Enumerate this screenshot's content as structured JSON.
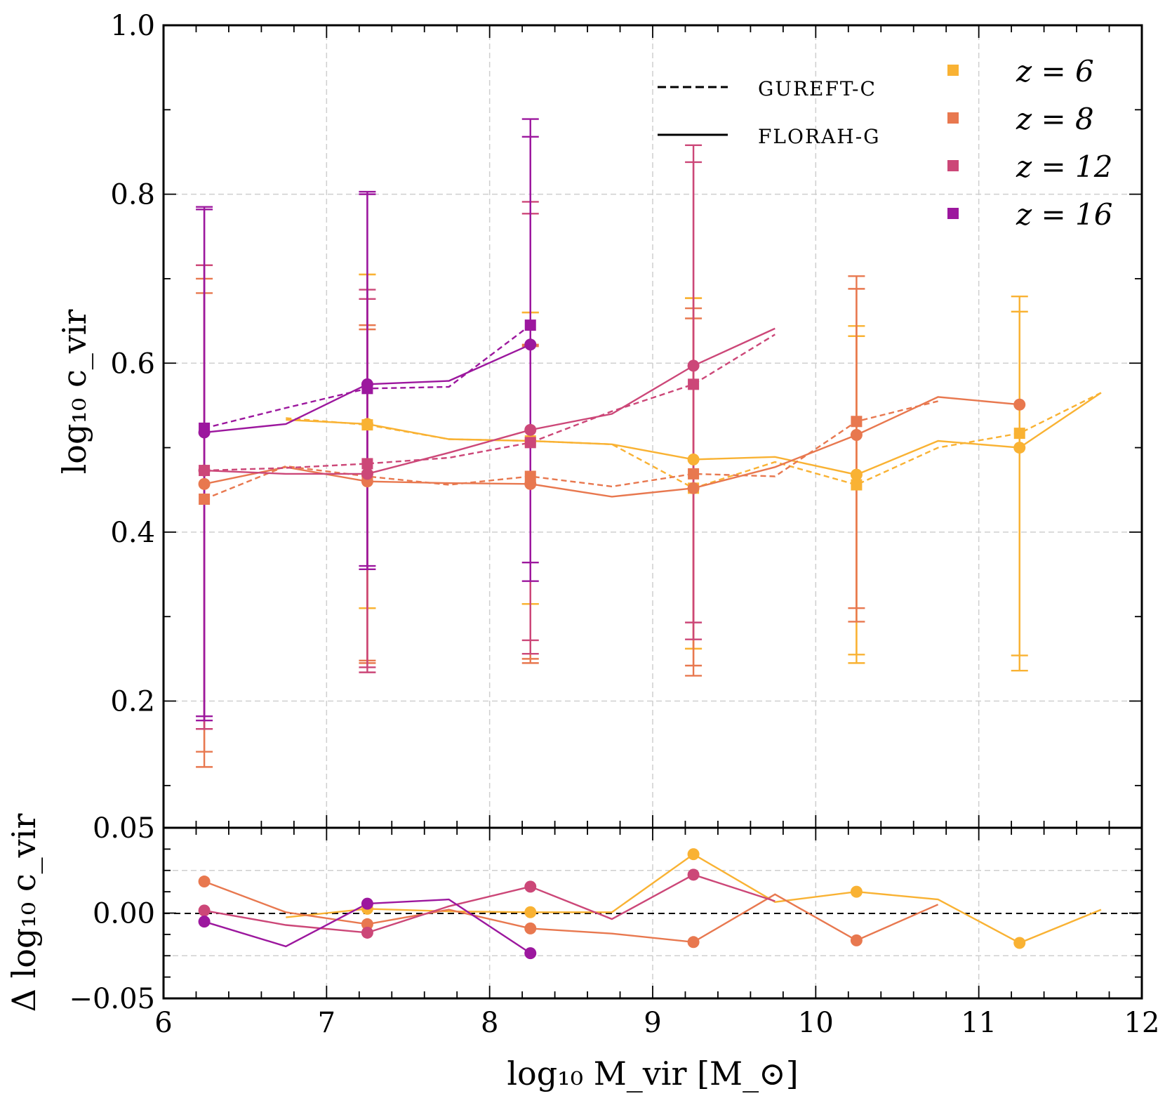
{
  "chart_data": [
    {
      "type": "line",
      "panel": "main",
      "ylabel": "log₁₀ c_vir",
      "xlim": [
        6,
        12
      ],
      "ylim": [
        0.05,
        1.0
      ],
      "yticks": [
        0.2,
        0.4,
        0.6,
        0.8,
        1.0
      ],
      "ytick_labels": [
        "0.2",
        "0.4",
        "0.6",
        "0.8",
        "1.0"
      ],
      "grid": true,
      "style_legend": [
        {
          "label": "GUREFT-C",
          "linestyle": "dashed"
        },
        {
          "label": "FLORAH-G",
          "linestyle": "solid"
        }
      ],
      "series": [
        {
          "name": "z = 6",
          "legend_label": "z = 6",
          "color": "#F9B233",
          "florah_line": {
            "x": [
              6.75,
              7.25,
              7.75,
              8.25,
              8.75,
              9.25,
              9.75,
              10.25,
              10.75,
              11.25,
              11.75
            ],
            "y": [
              0.533,
              0.528,
              0.51,
              0.508,
              0.504,
              0.486,
              0.489,
              0.468,
              0.508,
              0.5,
              0.565
            ]
          },
          "gureft_line": {
            "x": [
              6.75,
              7.25,
              7.75,
              8.25,
              8.75,
              9.25,
              9.75,
              10.25,
              10.75,
              11.25,
              11.75
            ],
            "y": [
              0.535,
              0.527,
              0.51,
              0.508,
              0.504,
              0.452,
              0.483,
              0.456,
              0.5,
              0.517,
              0.565
            ]
          },
          "florah_points": {
            "x": [
              7.25,
              8.25,
              9.25,
              10.25,
              11.25
            ],
            "y": [
              0.528,
              0.508,
              0.486,
              0.468,
              0.5
            ]
          },
          "gureft_points": {
            "x": [
              7.25,
              8.25,
              9.25,
              10.25,
              11.25
            ],
            "y": [
              0.527,
              0.508,
              0.452,
              0.456,
              0.517
            ]
          },
          "errorbars": {
            "florah": {
              "x": [
                7.25,
                8.25,
                9.25,
                10.25,
                11.25
              ],
              "low": [
                0.31,
                0.315,
                0.262,
                0.255,
                0.254
              ],
              "high": [
                0.705,
                0.66,
                0.677,
                0.644,
                0.679
              ]
            },
            "gureft": {
              "x": [
                7.25,
                8.25,
                9.25,
                10.25,
                11.25
              ],
              "low": [
                0.31,
                0.315,
                0.262,
                0.245,
                0.236
              ],
              "high": [
                0.705,
                0.66,
                0.677,
                0.632,
                0.661
              ]
            }
          }
        },
        {
          "name": "z = 8",
          "legend_label": "z = 8",
          "color": "#E8784F",
          "florah_line": {
            "x": [
              6.25,
              6.75,
              7.25,
              7.75,
              8.25,
              8.75,
              9.25,
              9.75,
              10.25,
              10.75,
              11.25
            ],
            "y": [
              0.457,
              0.477,
              0.46,
              0.458,
              0.457,
              0.442,
              0.452,
              0.477,
              0.515,
              0.56,
              0.551
            ]
          },
          "gureft_line": {
            "x": [
              6.25,
              6.75,
              7.25,
              7.75,
              8.25,
              8.75,
              9.25,
              9.75,
              10.25,
              10.75
            ],
            "y": [
              0.439,
              0.478,
              0.466,
              0.456,
              0.466,
              0.454,
              0.469,
              0.466,
              0.531,
              0.555
            ]
          },
          "florah_points": {
            "x": [
              6.25,
              7.25,
              8.25,
              9.25,
              10.25,
              11.25
            ],
            "y": [
              0.457,
              0.46,
              0.457,
              0.452,
              0.515,
              0.551
            ]
          },
          "gureft_points": {
            "x": [
              6.25,
              7.25,
              8.25,
              9.25,
              10.25
            ],
            "y": [
              0.439,
              0.466,
              0.466,
              0.469,
              0.531
            ]
          },
          "errorbars": {
            "florah": {
              "x": [
                6.25,
                7.25,
                8.25,
                9.25,
                10.25
              ],
              "low": [
                0.14,
                0.248,
                0.25,
                0.242,
                0.31
              ],
              "high": [
                0.7,
                0.645,
                0.62,
                0.665,
                0.703
              ]
            },
            "gureft": {
              "x": [
                6.25,
                7.25,
                8.25,
                9.25,
                10.25
              ],
              "low": [
                0.122,
                0.245,
                0.245,
                0.23,
                0.294
              ],
              "high": [
                0.683,
                0.64,
                0.622,
                0.653,
                0.688
              ]
            }
          }
        },
        {
          "name": "z = 12",
          "legend_label": "z = 12",
          "color": "#CC4778",
          "florah_line": {
            "x": [
              6.25,
              6.75,
              7.25,
              7.75,
              8.25,
              8.75,
              9.25,
              9.75
            ],
            "y": [
              0.473,
              0.469,
              0.469,
              0.494,
              0.521,
              0.54,
              0.597,
              0.641
            ]
          },
          "gureft_line": {
            "x": [
              6.25,
              6.75,
              7.25,
              7.75,
              8.25,
              8.75,
              9.25,
              9.75
            ],
            "y": [
              0.473,
              0.476,
              0.481,
              0.488,
              0.506,
              0.543,
              0.575,
              0.634
            ]
          },
          "florah_points": {
            "x": [
              6.25,
              7.25,
              8.25,
              9.25
            ],
            "y": [
              0.473,
              0.469,
              0.521,
              0.597
            ]
          },
          "gureft_points": {
            "x": [
              6.25,
              7.25,
              8.25,
              9.25
            ],
            "y": [
              0.473,
              0.481,
              0.506,
              0.575
            ]
          },
          "errorbars": {
            "florah": {
              "x": [
                6.25,
                7.25,
                8.25,
                9.25
              ],
              "low": [
                0.167,
                0.24,
                0.272,
                0.293
              ],
              "high": [
                0.716,
                0.687,
                0.791,
                0.858
              ]
            },
            "gureft": {
              "x": [
                6.25,
                7.25,
                8.25,
                9.25
              ],
              "low": [
                0.167,
                0.234,
                0.256,
                0.273
              ],
              "high": [
                0.716,
                0.676,
                0.777,
                0.838
              ]
            }
          }
        },
        {
          "name": "z = 16",
          "legend_label": "z = 16",
          "color": "#9C179E",
          "florah_line": {
            "x": [
              6.25,
              6.75,
              7.25,
              7.75,
              8.25
            ],
            "y": [
              0.518,
              0.528,
              0.575,
              0.579,
              0.622
            ]
          },
          "gureft_line": {
            "x": [
              6.25,
              6.75,
              7.25,
              7.75,
              8.25
            ],
            "y": [
              0.523,
              0.547,
              0.57,
              0.572,
              0.645
            ]
          },
          "florah_points": {
            "x": [
              6.25,
              7.25,
              8.25
            ],
            "y": [
              0.518,
              0.575,
              0.622
            ]
          },
          "gureft_points": {
            "x": [
              6.25,
              7.25,
              8.25
            ],
            "y": [
              0.523,
              0.57,
              0.645
            ]
          },
          "errorbars": {
            "florah": {
              "x": [
                6.25,
                7.25,
                8.25
              ],
              "low": [
                0.182,
                0.356,
                0.364
              ],
              "high": [
                0.785,
                0.803,
                0.889
              ]
            },
            "gureft": {
              "x": [
                6.25,
                7.25,
                8.25
              ],
              "low": [
                0.177,
                0.36,
                0.342
              ],
              "high": [
                0.782,
                0.8,
                0.868
              ]
            }
          }
        }
      ]
    },
    {
      "type": "line",
      "panel": "residual",
      "ylabel": "Δ log₁₀ c_vir",
      "xlabel": "log₁₀ M_vir [M_⊙]",
      "xlim": [
        6,
        12
      ],
      "ylim": [
        -0.05,
        0.05
      ],
      "xticks": [
        6,
        7,
        8,
        9,
        10,
        11,
        12
      ],
      "xtick_labels": [
        "6",
        "7",
        "8",
        "9",
        "10",
        "11",
        "12"
      ],
      "yticks": [
        -0.05,
        0.0,
        0.05
      ],
      "ytick_labels": [
        "−0.05",
        "0.00",
        "0.05"
      ],
      "reference_line": 0.0,
      "grid": true,
      "series": [
        {
          "name": "z = 6",
          "color": "#F9B233",
          "line": {
            "x": [
              6.75,
              7.25,
              7.75,
              8.25,
              8.75,
              9.25,
              9.75,
              10.25,
              10.75,
              11.25,
              11.75
            ],
            "y": [
              -0.0025,
              0.0025,
              0.001,
              0.0005,
              0.0005,
              0.0345,
              0.0065,
              0.0125,
              0.008,
              -0.0175,
              0.002
            ]
          },
          "points": {
            "x": [
              7.25,
              8.25,
              9.25,
              10.25,
              11.25
            ],
            "y": [
              0.0025,
              0.0005,
              0.0345,
              0.0125,
              -0.0175
            ]
          }
        },
        {
          "name": "z = 8",
          "color": "#E8784F",
          "line": {
            "x": [
              6.25,
              6.75,
              7.25,
              7.75,
              8.25,
              8.75,
              9.25,
              9.75,
              10.25,
              10.75
            ],
            "y": [
              0.0185,
              0.0005,
              -0.0065,
              0.002,
              -0.009,
              -0.012,
              -0.017,
              0.011,
              -0.016,
              0.005
            ]
          },
          "points": {
            "x": [
              6.25,
              7.25,
              8.25,
              9.25,
              10.25
            ],
            "y": [
              0.0185,
              -0.0065,
              -0.009,
              -0.017,
              -0.016
            ]
          }
        },
        {
          "name": "z = 12",
          "color": "#CC4778",
          "line": {
            "x": [
              6.25,
              6.75,
              7.25,
              7.75,
              8.25,
              8.75,
              9.25,
              9.75
            ],
            "y": [
              0.0015,
              -0.007,
              -0.0115,
              0.004,
              0.0155,
              -0.0035,
              0.0225,
              0.007
            ]
          },
          "points": {
            "x": [
              6.25,
              7.25,
              8.25,
              9.25
            ],
            "y": [
              0.0015,
              -0.0115,
              0.0155,
              0.0225
            ]
          }
        },
        {
          "name": "z = 16",
          "color": "#9C179E",
          "line": {
            "x": [
              6.25,
              6.75,
              7.25,
              7.75,
              8.25
            ],
            "y": [
              -0.005,
              -0.0195,
              0.0055,
              0.008,
              -0.0235
            ]
          },
          "points": {
            "x": [
              6.25,
              7.25,
              8.25
            ],
            "y": [
              -0.005,
              0.0055,
              -0.0235
            ]
          }
        }
      ]
    }
  ]
}
